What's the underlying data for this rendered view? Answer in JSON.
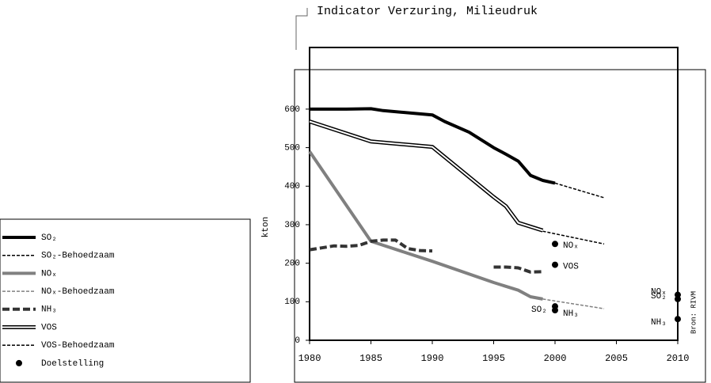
{
  "chart_data": {
    "type": "line",
    "title": "Indicator Verzuring, Milieudruk",
    "y_label": "kton",
    "source": "Bron: RIVM",
    "xlim": [
      1980,
      2010
    ],
    "xticks": [
      1980,
      1985,
      1990,
      1995,
      2000,
      2005,
      2010
    ],
    "ylim": [
      0,
      760
    ],
    "yticks": [
      0,
      100,
      200,
      300,
      400,
      500,
      600
    ],
    "legend": "left",
    "series": [
      {
        "name": "SO₂",
        "color": "#000000",
        "line_style": "solid",
        "x": [
          1980,
          1983,
          1985,
          1986,
          1990,
          1991,
          1993,
          1995,
          1996,
          1997,
          1998,
          1999,
          2000
        ],
        "values": [
          600,
          600,
          601,
          596,
          585,
          568,
          540,
          500,
          483,
          465,
          428,
          415,
          408
        ]
      },
      {
        "name": "SO₂-Behoedzaam",
        "color": "#000000",
        "line_style": "dashed",
        "x": [
          2000,
          2004
        ],
        "values": [
          408,
          370
        ]
      },
      {
        "name": "NOₓ",
        "color": "#808080",
        "line_style": "solid",
        "x": [
          1980,
          1985,
          1990,
          1995,
          1997,
          1998,
          1999
        ],
        "values": [
          490,
          257,
          205,
          150,
          130,
          113,
          107
        ]
      },
      {
        "name": "NOₓ-Behoedzaam",
        "color": "#808080",
        "line_style": "dashed",
        "x": [
          1999,
          2004
        ],
        "values": [
          107,
          82
        ]
      },
      {
        "name": "NH₃",
        "color": "#333333",
        "line_style": "thick-dashed",
        "x": [
          1980,
          1981,
          1982,
          1983,
          1984,
          1985,
          1986,
          1987,
          1988,
          1989,
          1990,
          1991,
          1995,
          1996,
          1997,
          1998,
          1999
        ],
        "values": [
          235,
          240,
          245,
          244,
          246,
          257,
          260,
          260,
          238,
          233,
          232,
          null,
          190,
          190,
          188,
          177,
          178
        ]
      },
      {
        "name": "VOS",
        "color": "#000000",
        "line_style": "double",
        "x": [
          1980,
          1985,
          1990,
          1995,
          1996,
          1997,
          1998,
          1999
        ],
        "values": [
          568,
          516,
          502,
          372,
          348,
          305,
          295,
          285
        ]
      },
      {
        "name": "VOS-Behoedzaam",
        "color": "#000000",
        "line_style": "dashed",
        "x": [
          1999,
          2004
        ],
        "values": [
          283,
          250
        ]
      },
      {
        "name": "Doelstelling",
        "color": "#000000",
        "line_style": "points",
        "x": [
          2000,
          2000,
          2000,
          2000,
          2010,
          2010,
          2010
        ],
        "values": [
          250,
          196,
          88,
          78,
          118,
          107,
          55
        ],
        "point_labels": [
          "NOₓ",
          "VOS",
          "SO₂",
          "NH₃",
          "NOₓ",
          "SO₂",
          "NH₃"
        ]
      }
    ]
  }
}
